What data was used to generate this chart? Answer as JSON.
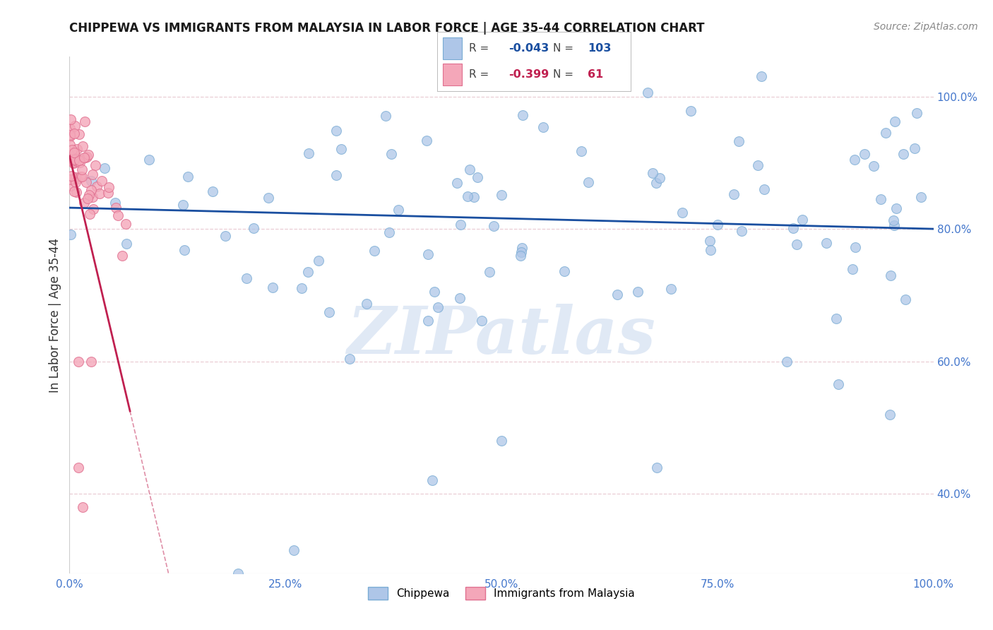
{
  "title": "CHIPPEWA VS IMMIGRANTS FROM MALAYSIA IN LABOR FORCE | AGE 35-44 CORRELATION CHART",
  "source": "Source: ZipAtlas.com",
  "ylabel": "In Labor Force | Age 35-44",
  "xlim": [
    0.0,
    1.0
  ],
  "ylim": [
    0.28,
    1.06
  ],
  "blue_R": -0.043,
  "blue_N": 103,
  "pink_R": -0.399,
  "pink_N": 61,
  "blue_color": "#aec6e8",
  "blue_edge": "#7aacd4",
  "pink_color": "#f4a7b9",
  "pink_edge": "#e07090",
  "trend_blue": "#1a4fa0",
  "trend_pink": "#c02050",
  "watermark": "ZIPatlas",
  "legend_label_blue": "Chippewa",
  "legend_label_pink": "Immigrants from Malaysia",
  "grid_color": "#e8c8d0",
  "y_tick_color": "#4477cc",
  "x_tick_color": "#4477cc",
  "title_fontsize": 12,
  "source_fontsize": 10,
  "tick_fontsize": 11
}
